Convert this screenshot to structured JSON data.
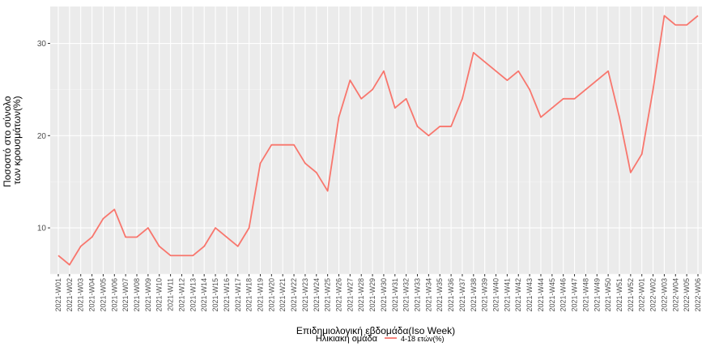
{
  "chart_data": {
    "type": "line",
    "xlabel": "Επιδημιολογική εβδομάδα(Iso Week)",
    "ylabel_lines": [
      "Ποσοστό στο σύνολο",
      "των κρουσμάτων(%)"
    ],
    "ylim": [
      5,
      34
    ],
    "yticks": [
      10,
      20,
      30
    ],
    "grid": true,
    "legend": {
      "title": "Ηλικιακή ομάδα",
      "position": "bottom"
    },
    "line_color": "#F8766D",
    "x": [
      "2021-W01",
      "2021-W02",
      "2021-W03",
      "2021-W04",
      "2021-W05",
      "2021-W06",
      "2021-W07",
      "2021-W08",
      "2021-W09",
      "2021-W10",
      "2021-W11",
      "2021-W12",
      "2021-W13",
      "2021-W14",
      "2021-W15",
      "2021-W16",
      "2021-W17",
      "2021-W18",
      "2021-W19",
      "2021-W20",
      "2021-W21",
      "2021-W22",
      "2021-W23",
      "2021-W24",
      "2021-W25",
      "2021-W26",
      "2021-W27",
      "2021-W28",
      "2021-W29",
      "2021-W30",
      "2021-W31",
      "2021-W32",
      "2021-W33",
      "2021-W34",
      "2021-W35",
      "2021-W36",
      "2021-W37",
      "2021-W38",
      "2021-W39",
      "2021-W40",
      "2021-W41",
      "2021-W42",
      "2021-W43",
      "2021-W44",
      "2021-W45",
      "2021-W46",
      "2021-W47",
      "2021-W48",
      "2021-W49",
      "2021-W50",
      "2021-W51",
      "2021-W52",
      "2022-W01",
      "2022-W02",
      "2022-W03",
      "2022-W04",
      "2022-W05",
      "2022-W06"
    ],
    "series": [
      {
        "name": "4-18 ετών(%)",
        "values": [
          7,
          6,
          8,
          9,
          11,
          12,
          9,
          9,
          10,
          8,
          7,
          7,
          7,
          8,
          10,
          9,
          8,
          10,
          17,
          19,
          19,
          19,
          17,
          16,
          14,
          22,
          26,
          24,
          25,
          27,
          23,
          24,
          21,
          20,
          21,
          21,
          24,
          29,
          28,
          27,
          26,
          27,
          25,
          22,
          23,
          24,
          24,
          25,
          26,
          27,
          22,
          16,
          18,
          25,
          33,
          32,
          32,
          33
        ]
      }
    ]
  }
}
